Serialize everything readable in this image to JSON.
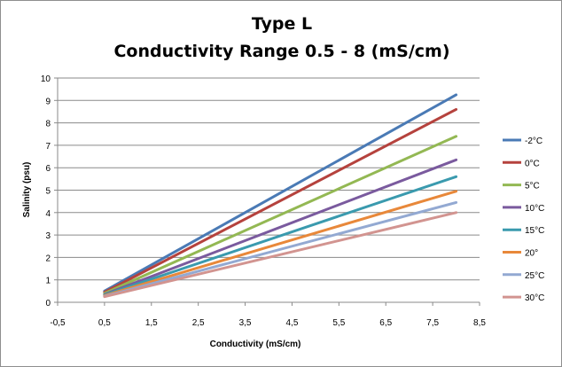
{
  "chart_data": {
    "type": "line",
    "title": "Type L",
    "subtitle": "Conductivity Range 0.5 - 8 (mS/cm)",
    "xlabel": "Conductivity (mS/cm)",
    "ylabel": "Salinity (psu)",
    "xlim": [
      -0.5,
      8.5
    ],
    "ylim": [
      0,
      10
    ],
    "x_ticks": [
      "-0,5",
      "0,5",
      "1,5",
      "2,5",
      "3,5",
      "4,5",
      "5,5",
      "6,5",
      "7,5",
      "8,5"
    ],
    "y_ticks": [
      "0",
      "1",
      "2",
      "3",
      "4",
      "5",
      "6",
      "7",
      "8",
      "9",
      "10"
    ],
    "grid": "horizontal",
    "legend_position": "right",
    "x": [
      0.5,
      8
    ],
    "series": [
      {
        "name": "-2°C",
        "color": "#4a7ab5",
        "values": [
          0.5,
          9.25
        ]
      },
      {
        "name": "0°C",
        "color": "#b5423d",
        "values": [
          0.45,
          8.6
        ]
      },
      {
        "name": "5°C",
        "color": "#93b853",
        "values": [
          0.4,
          7.4
        ]
      },
      {
        "name": "10°C",
        "color": "#7a5a9e",
        "values": [
          0.35,
          6.35
        ]
      },
      {
        "name": "15°C",
        "color": "#3a9aae",
        "values": [
          0.33,
          5.6
        ]
      },
      {
        "name": "20°",
        "color": "#e8883a",
        "values": [
          0.3,
          4.95
        ]
      },
      {
        "name": "25°C",
        "color": "#93a9d2",
        "values": [
          0.27,
          4.45
        ]
      },
      {
        "name": "30°C",
        "color": "#d29490",
        "values": [
          0.25,
          4.0
        ]
      }
    ]
  }
}
